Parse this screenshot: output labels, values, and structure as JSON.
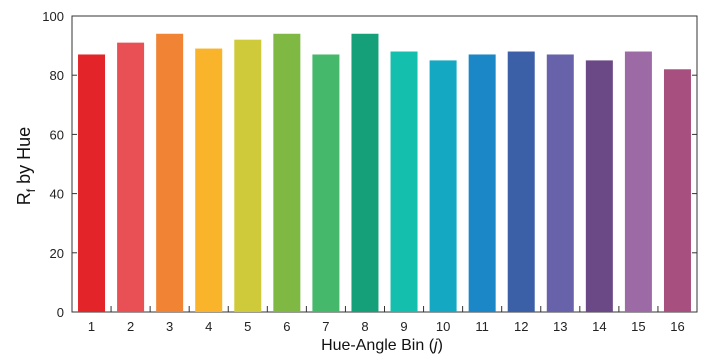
{
  "chart_data": {
    "type": "bar",
    "title": "",
    "xlabel": "Hue-Angle Bin (",
    "xlabel_var": "j",
    "xlabel_close": ")",
    "ylabel_main": "R",
    "ylabel_sub": "f",
    "ylabel_rest": " by Hue",
    "ylim": [
      0,
      100
    ],
    "yticks": [
      "0",
      "20",
      "40",
      "60",
      "80",
      "100"
    ],
    "ytick_values": [
      0,
      20,
      40,
      60,
      80,
      100
    ],
    "grid": false,
    "categories": [
      "1",
      "2",
      "3",
      "4",
      "5",
      "6",
      "7",
      "8",
      "9",
      "10",
      "11",
      "12",
      "13",
      "14",
      "15",
      "16"
    ],
    "values": [
      87,
      91,
      94,
      89,
      92,
      94,
      87,
      94,
      88,
      85,
      87,
      88,
      87,
      85,
      88,
      82
    ],
    "colors": [
      "#e32428",
      "#e85055",
      "#f08434",
      "#fab42c",
      "#cfca39",
      "#7fb843",
      "#45b86b",
      "#16a07a",
      "#14bfad",
      "#14a8c3",
      "#1b87c6",
      "#3b60a8",
      "#6762aa",
      "#6b4886",
      "#9c6aa4",
      "#a74f7f"
    ]
  }
}
